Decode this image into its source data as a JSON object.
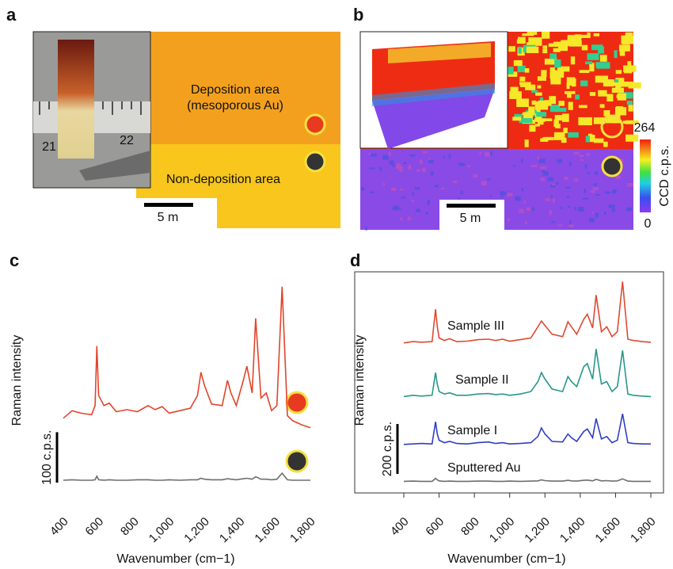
{
  "panels": {
    "a": {
      "label": "a",
      "top_text": "Deposition area",
      "top_subtext": "(mesoporous Au)",
      "bottom_text": "Non-deposition area",
      "scale_bar": "5  m",
      "ruler": [
        "21",
        "22"
      ]
    },
    "b": {
      "label": "b",
      "scale_bar": "5  m",
      "colorbar_label": "CCD c.p.s.",
      "colorbar_max": "264",
      "colorbar_min": "0"
    }
  },
  "chart_data": [
    {
      "type": "line",
      "label": "c",
      "ylabel": "Raman intensity",
      "xlabel": "Wavenumber (cm−1)",
      "xlim": [
        400,
        1800
      ],
      "ylim": [
        -20,
        420
      ],
      "xticks": [
        400,
        600,
        800,
        {
          "value": 1000,
          "label": "1,000"
        },
        {
          "value": 1200,
          "label": "1,200"
        },
        {
          "value": 1400,
          "label": "1,400"
        },
        {
          "value": 1600,
          "label": "1,600"
        },
        {
          "value": 1800,
          "label": "1,800"
        }
      ],
      "scale_bar": {
        "value": 100,
        "label": "100 c.p.s."
      },
      "x": [
        400,
        450,
        500,
        560,
        580,
        590,
        600,
        630,
        660,
        700,
        760,
        820,
        880,
        920,
        960,
        1000,
        1060,
        1120,
        1160,
        1180,
        1200,
        1240,
        1300,
        1330,
        1350,
        1380,
        1420,
        1440,
        1470,
        1490,
        1520,
        1550,
        1580,
        1610,
        1640,
        1670,
        1700,
        1750,
        1800
      ],
      "series": [
        {
          "color": "#e2442b",
          "values": [
            125,
            140,
            135,
            132,
            150,
            268,
            170,
            150,
            155,
            138,
            142,
            138,
            150,
            142,
            148,
            135,
            140,
            145,
            170,
            216,
            190,
            153,
            150,
            200,
            175,
            150,
            200,
            228,
            175,
            323,
            165,
            175,
            140,
            150,
            386,
            130,
            120,
            112,
            106
          ]
        },
        {
          "color": "#6e6e6e",
          "values": [
            2,
            3,
            2,
            2,
            3,
            10,
            3,
            2,
            3,
            2,
            2,
            3,
            3,
            2,
            2,
            3,
            2,
            3,
            3,
            6,
            4,
            3,
            3,
            5,
            4,
            3,
            5,
            6,
            4,
            9,
            4,
            4,
            3,
            4,
            16,
            3,
            2,
            2,
            2
          ]
        }
      ]
    },
    {
      "type": "line",
      "label": "d",
      "ylabel": "Raman intensity",
      "xlabel": "Wavenumber (cm−1)",
      "xlim": [
        400,
        1800
      ],
      "ylim": [
        -40,
        840
      ],
      "xticks": [
        400,
        600,
        800,
        {
          "value": 1000,
          "label": "1,000"
        },
        {
          "value": 1200,
          "label": "1,200"
        },
        {
          "value": 1400,
          "label": "1,400"
        },
        {
          "value": 1600,
          "label": "1,600"
        },
        {
          "value": 1800,
          "label": "1,800"
        }
      ],
      "scale_bar": {
        "value": 200,
        "label": "200 c.p.s."
      },
      "x": [
        400,
        450,
        500,
        560,
        580,
        590,
        600,
        630,
        660,
        700,
        760,
        820,
        880,
        920,
        960,
        1000,
        1060,
        1120,
        1160,
        1180,
        1200,
        1240,
        1300,
        1330,
        1350,
        1380,
        1420,
        1440,
        1470,
        1490,
        1520,
        1550,
        1580,
        1610,
        1640,
        1670,
        1700,
        1750,
        1800
      ],
      "series": [
        {
          "name": "Sample III",
          "color": "#de4a30",
          "values": [
            555,
            560,
            558,
            560,
            690,
            620,
            575,
            565,
            572,
            560,
            562,
            568,
            570,
            565,
            570,
            562,
            568,
            575,
            620,
            643,
            625,
            590,
            580,
            640,
            620,
            590,
            650,
            670,
            615,
            747,
            600,
            620,
            580,
            600,
            801,
            570,
            565,
            560,
            558
          ]
        },
        {
          "name": "Sample II",
          "color": "#27978a",
          "values": [
            340,
            345,
            342,
            345,
            436,
            390,
            360,
            350,
            355,
            345,
            345,
            350,
            352,
            348,
            350,
            345,
            350,
            360,
            400,
            436,
            410,
            370,
            360,
            420,
            400,
            380,
            460,
            472,
            410,
            531,
            390,
            400,
            360,
            380,
            525,
            350,
            345,
            342,
            340
          ]
        },
        {
          "name": "Sample I",
          "color": "#2e3fbf",
          "values": [
            148,
            150,
            152,
            150,
            239,
            190,
            165,
            155,
            160,
            152,
            150,
            155,
            158,
            152,
            155,
            150,
            152,
            155,
            180,
            214,
            190,
            160,
            158,
            190,
            175,
            160,
            200,
            210,
            175,
            252,
            170,
            180,
            155,
            165,
            271,
            155,
            152,
            150,
            150
          ]
        },
        {
          "name": "Sputtered Au",
          "color": "#6e6e6e",
          "values": [
            0,
            1,
            0,
            0,
            12,
            6,
            2,
            0,
            1,
            0,
            0,
            1,
            1,
            0,
            0,
            1,
            0,
            1,
            2,
            6,
            3,
            1,
            1,
            4,
            2,
            1,
            4,
            5,
            2,
            8,
            2,
            3,
            1,
            2,
            10,
            1,
            0,
            0,
            0
          ]
        }
      ]
    }
  ]
}
